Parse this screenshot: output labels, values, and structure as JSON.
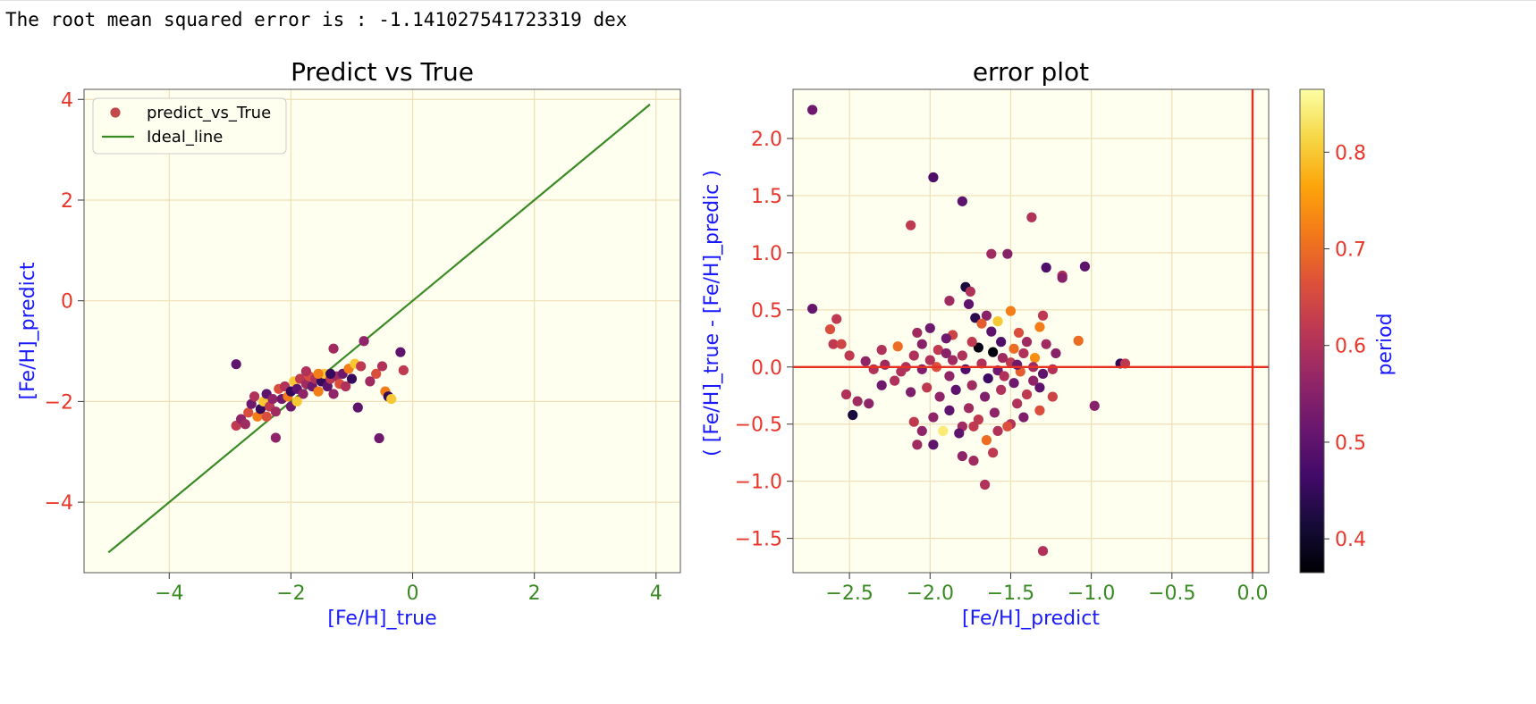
{
  "output_text": "The root mean squared error is : -1.141027541723319 dex",
  "colors": {
    "plot_bg": "#fffff0",
    "grid": "#eedfb5",
    "ideal_line": "#3a8a24",
    "zero_line": "#e83020",
    "y_tick_color": "#e8362a",
    "x_tick_color": "#3a8a24",
    "axis_label_color": "#1a1aff",
    "legend_marker": "#c14a4a"
  },
  "chart_data": [
    {
      "type": "scatter",
      "title": "Predict vs True",
      "xlabel": "[Fe/H]_true",
      "ylabel": "[Fe/H]_predict",
      "xlim": [
        -5.4,
        4.4
      ],
      "ylim": [
        -5.4,
        4.2
      ],
      "xticks": [
        -4,
        -2,
        0,
        2,
        4
      ],
      "yticks": [
        -4,
        -2,
        0,
        2,
        4
      ],
      "xtick_labels": [
        "−4",
        "−2",
        "0",
        "2",
        "4"
      ],
      "ytick_labels": [
        "−4",
        "−2",
        "0",
        "2",
        "4"
      ],
      "grid": true,
      "legend": {
        "position": "top-left",
        "entries": [
          {
            "label": "predict_vs_True",
            "kind": "marker"
          },
          {
            "label": "Ideal_line",
            "kind": "line"
          }
        ]
      },
      "lines": [
        {
          "name": "Ideal_line",
          "x": [
            -5.0,
            3.9
          ],
          "y": [
            -5.0,
            3.9
          ]
        }
      ],
      "series": [
        {
          "name": "predict_vs_True",
          "points": [
            [
              -2.9,
              -1.26
            ],
            [
              -2.9,
              -2.48
            ],
            [
              -2.82,
              -2.35
            ],
            [
              -2.75,
              -2.45
            ],
            [
              -2.7,
              -2.22
            ],
            [
              -2.65,
              -2.05
            ],
            [
              -2.6,
              -1.9
            ],
            [
              -2.55,
              -2.3
            ],
            [
              -2.5,
              -2.15
            ],
            [
              -2.45,
              -2.0
            ],
            [
              -2.4,
              -1.85
            ],
            [
              -2.35,
              -2.1
            ],
            [
              -2.3,
              -1.95
            ],
            [
              -2.25,
              -2.2
            ],
            [
              -2.2,
              -1.75
            ],
            [
              -2.15,
              -1.95
            ],
            [
              -2.1,
              -1.7
            ],
            [
              -2.05,
              -1.9
            ],
            [
              -2.0,
              -1.8
            ],
            [
              -1.95,
              -1.6
            ],
            [
              -1.9,
              -1.75
            ],
            [
              -1.85,
              -1.55
            ],
            [
              -1.8,
              -1.85
            ],
            [
              -1.75,
              -1.65
            ],
            [
              -1.7,
              -1.5
            ],
            [
              -1.65,
              -1.7
            ],
            [
              -1.6,
              -1.55
            ],
            [
              -1.55,
              -1.8
            ],
            [
              -1.5,
              -1.6
            ],
            [
              -1.45,
              -1.45
            ],
            [
              -1.4,
              -1.7
            ],
            [
              -1.35,
              -1.55
            ],
            [
              -1.3,
              -1.85
            ],
            [
              -1.25,
              -1.5
            ],
            [
              -1.2,
              -1.65
            ],
            [
              -1.15,
              -1.45
            ],
            [
              -1.1,
              -1.7
            ],
            [
              -1.05,
              -1.35
            ],
            [
              -1.0,
              -1.55
            ],
            [
              -0.95,
              -1.25
            ],
            [
              -0.9,
              -2.12
            ],
            [
              -0.85,
              -1.3
            ],
            [
              -0.8,
              -0.8
            ],
            [
              -0.7,
              -1.6
            ],
            [
              -0.6,
              -1.45
            ],
            [
              -0.55,
              -2.73
            ],
            [
              -0.5,
              -1.3
            ],
            [
              -0.45,
              -1.8
            ],
            [
              -0.4,
              -1.9
            ],
            [
              -0.35,
              -1.95
            ],
            [
              -0.2,
              -1.02
            ],
            [
              -0.15,
              -1.38
            ],
            [
              -2.25,
              -2.72
            ],
            [
              -1.3,
              -0.95
            ],
            [
              -2.4,
              -2.3
            ],
            [
              -2.0,
              -2.1
            ],
            [
              -1.75,
              -1.4
            ],
            [
              -1.55,
              -1.45
            ],
            [
              -1.35,
              -1.45
            ],
            [
              -1.9,
              -2.0
            ]
          ]
        }
      ]
    },
    {
      "type": "scatter",
      "title": "error plot",
      "xlabel": "[Fe/H]_predict",
      "ylabel": "(  [Fe/H]_true - [Fe/H]_predic  )",
      "xlim": [
        -2.85,
        0.1
      ],
      "ylim": [
        -1.8,
        2.43
      ],
      "xticks": [
        -2.5,
        -2.0,
        -1.5,
        -1.0,
        -0.5,
        0.0
      ],
      "yticks": [
        -1.5,
        -1.0,
        -0.5,
        0.0,
        0.5,
        1.0,
        1.5,
        2.0
      ],
      "xtick_labels": [
        "−2.5",
        "−2.0",
        "−1.5",
        "−1.0",
        "−0.5",
        "0.0"
      ],
      "ytick_labels": [
        "−1.5",
        "−1.0",
        "−0.5",
        "0.0",
        "0.5",
        "1.0",
        "1.5",
        "2.0"
      ],
      "grid": true,
      "reference_lines": {
        "horizontal_y": 0.0,
        "vertical_x": 0.0
      },
      "colorbar": {
        "label": "period",
        "range": [
          0.365,
          0.865
        ],
        "ticks": [
          0.4,
          0.5,
          0.6,
          0.7,
          0.8
        ],
        "tick_labels": [
          "0.4",
          "0.5",
          "0.6",
          "0.7",
          "0.8"
        ],
        "colormap": "inferno"
      },
      "series": [
        {
          "name": "",
          "points": [
            [
              -2.73,
              2.25,
              0.52
            ],
            [
              -2.73,
              0.51,
              0.51
            ],
            [
              -1.98,
              1.66,
              0.48
            ],
            [
              -1.8,
              1.45,
              0.5
            ],
            [
              -1.37,
              1.31,
              0.6
            ],
            [
              -2.12,
              1.24,
              0.62
            ],
            [
              -1.62,
              0.99,
              0.58
            ],
            [
              -1.52,
              0.99,
              0.55
            ],
            [
              -1.28,
              0.87,
              0.48
            ],
            [
              -1.04,
              0.88,
              0.5
            ],
            [
              -1.18,
              0.8,
              0.6
            ],
            [
              -1.18,
              0.78,
              0.55
            ],
            [
              -1.78,
              0.7,
              0.42
            ],
            [
              -1.75,
              0.66,
              0.6
            ],
            [
              -1.88,
              0.58,
              0.58
            ],
            [
              -1.76,
              0.55,
              0.5
            ],
            [
              -1.5,
              0.49,
              0.72
            ],
            [
              -1.65,
              0.45,
              0.55
            ],
            [
              -1.72,
              0.43,
              0.44
            ],
            [
              -2.58,
              0.42,
              0.62
            ],
            [
              -2.62,
              0.33,
              0.66
            ],
            [
              -1.3,
              0.45,
              0.62
            ],
            [
              -1.32,
              0.35,
              0.72
            ],
            [
              -1.58,
              0.4,
              0.8
            ],
            [
              -1.68,
              0.38,
              0.68
            ],
            [
              -2.0,
              0.34,
              0.52
            ],
            [
              -2.08,
              0.3,
              0.58
            ],
            [
              -1.86,
              0.28,
              0.64
            ],
            [
              -1.62,
              0.31,
              0.5
            ],
            [
              -1.45,
              0.3,
              0.66
            ],
            [
              -1.4,
              0.22,
              0.58
            ],
            [
              -2.6,
              0.2,
              0.62
            ],
            [
              -2.55,
              0.2,
              0.64
            ],
            [
              -2.3,
              0.15,
              0.6
            ],
            [
              -2.2,
              0.18,
              0.7
            ],
            [
              -2.1,
              0.1,
              0.6
            ],
            [
              -2.05,
              0.2,
              0.55
            ],
            [
              -1.95,
              0.15,
              0.62
            ],
            [
              -1.9,
              0.25,
              0.52
            ],
            [
              -1.7,
              0.17,
              0.38
            ],
            [
              -1.61,
              0.13,
              0.37
            ],
            [
              -1.56,
              0.22,
              0.48
            ],
            [
              -1.48,
              0.16,
              0.7
            ],
            [
              -1.42,
              0.12,
              0.6
            ],
            [
              -1.35,
              0.08,
              0.74
            ],
            [
              -1.28,
              0.2,
              0.58
            ],
            [
              -1.22,
              0.12,
              0.55
            ],
            [
              -1.08,
              0.23,
              0.7
            ],
            [
              -0.82,
              0.03,
              0.45
            ],
            [
              -0.79,
              0.03,
              0.62
            ],
            [
              -2.5,
              0.1,
              0.62
            ],
            [
              -2.4,
              0.05,
              0.56
            ],
            [
              -2.28,
              0.02,
              0.58
            ],
            [
              -2.15,
              0.0,
              0.6
            ],
            [
              -2.05,
              -0.02,
              0.54
            ],
            [
              -1.96,
              0.0,
              0.66
            ],
            [
              -1.86,
              0.06,
              0.58
            ],
            [
              -1.78,
              -0.02,
              0.48
            ],
            [
              -1.68,
              0.03,
              0.6
            ],
            [
              -1.58,
              -0.03,
              0.52
            ],
            [
              -1.5,
              0.04,
              0.62
            ],
            [
              -1.44,
              -0.04,
              0.68
            ],
            [
              -1.36,
              0.0,
              0.58
            ],
            [
              -1.3,
              -0.06,
              0.5
            ],
            [
              -1.24,
              -0.02,
              0.6
            ],
            [
              -2.52,
              -0.24,
              0.6
            ],
            [
              -2.45,
              -0.3,
              0.58
            ],
            [
              -2.38,
              -0.32,
              0.56
            ],
            [
              -2.3,
              -0.16,
              0.52
            ],
            [
              -2.22,
              -0.12,
              0.6
            ],
            [
              -2.12,
              -0.22,
              0.54
            ],
            [
              -2.02,
              -0.18,
              0.62
            ],
            [
              -1.94,
              -0.26,
              0.56
            ],
            [
              -1.84,
              -0.2,
              0.5
            ],
            [
              -1.74,
              -0.16,
              0.58
            ],
            [
              -1.66,
              -0.26,
              0.54
            ],
            [
              -1.56,
              -0.2,
              0.6
            ],
            [
              -1.48,
              -0.14,
              0.52
            ],
            [
              -1.4,
              -0.24,
              0.62
            ],
            [
              -1.32,
              -0.18,
              0.5
            ],
            [
              -1.24,
              -0.26,
              0.64
            ],
            [
              -2.48,
              -0.42,
              0.42
            ],
            [
              -2.1,
              -0.48,
              0.62
            ],
            [
              -1.98,
              -0.44,
              0.56
            ],
            [
              -1.88,
              -0.38,
              0.5
            ],
            [
              -1.8,
              -0.52,
              0.58
            ],
            [
              -1.7,
              -0.46,
              0.62
            ],
            [
              -1.6,
              -0.4,
              0.56
            ],
            [
              -1.5,
              -0.5,
              0.6
            ],
            [
              -1.42,
              -0.44,
              0.54
            ],
            [
              -1.32,
              -0.38,
              0.66
            ],
            [
              -0.98,
              -0.34,
              0.55
            ],
            [
              -2.05,
              -0.56,
              0.56
            ],
            [
              -1.92,
              -0.56,
              0.84
            ],
            [
              -1.82,
              -0.58,
              0.5
            ],
            [
              -1.73,
              -0.52,
              0.62
            ],
            [
              -1.65,
              -0.64,
              0.7
            ],
            [
              -1.58,
              -0.56,
              0.6
            ],
            [
              -1.52,
              -0.52,
              0.66
            ],
            [
              -1.98,
              -0.68,
              0.5
            ],
            [
              -2.08,
              -0.68,
              0.58
            ],
            [
              -1.8,
              -0.78,
              0.56
            ],
            [
              -1.73,
              -0.82,
              0.58
            ],
            [
              -1.61,
              -0.75,
              0.62
            ],
            [
              -1.66,
              -1.03,
              0.6
            ],
            [
              -1.3,
              -1.61,
              0.6
            ],
            [
              -1.9,
              0.12,
              0.55
            ],
            [
              -1.8,
              0.1,
              0.6
            ],
            [
              -1.55,
              0.08,
              0.58
            ],
            [
              -1.46,
              0.02,
              0.52
            ],
            [
              -2.0,
              0.06,
              0.6
            ],
            [
              -1.74,
              0.22,
              0.62
            ],
            [
              -1.64,
              -0.1,
              0.46
            ],
            [
              -1.54,
              -0.08,
              0.6
            ],
            [
              -2.18,
              -0.04,
              0.6
            ],
            [
              -2.35,
              -0.02,
              0.6
            ],
            [
              -1.88,
              -0.08,
              0.56
            ],
            [
              -1.76,
              -0.36,
              0.58
            ],
            [
              -1.46,
              -0.32,
              0.6
            ],
            [
              -1.36,
              -0.12,
              0.56
            ]
          ]
        }
      ]
    }
  ]
}
